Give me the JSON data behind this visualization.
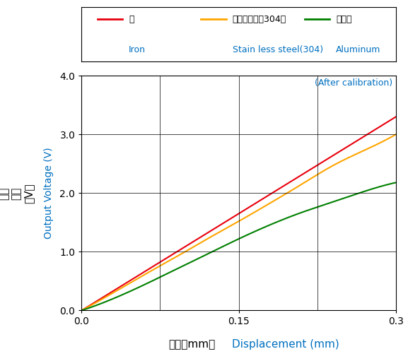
{
  "annotation_text": "(After calibration)",
  "xlabel_jp": "変位（mm）",
  "xlabel_en": "Displacement (mm)",
  "ylabel_jp": "出力\n電圧\n（V）",
  "ylabel_en": "Output Voltage (V)",
  "xlim": [
    0.0,
    0.3
  ],
  "ylim": [
    0.0,
    4.0
  ],
  "xticks": [
    0.0,
    0.15,
    0.3
  ],
  "yticks": [
    0.0,
    1.0,
    2.0,
    3.0,
    4.0
  ],
  "legend": [
    {
      "label_jp": "鉄",
      "label_en": "Iron",
      "color": "#e8000d"
    },
    {
      "label_jp": "ステンレス（304）",
      "label_en": "Stain less steel(304)",
      "color": "#ffa500"
    },
    {
      "label_jp": "アルミ",
      "label_en": "Aluminum",
      "color": "#008000"
    }
  ],
  "iron_x": [
    0.0,
    0.03,
    0.06,
    0.09,
    0.12,
    0.15,
    0.18,
    0.21,
    0.24,
    0.27,
    0.3
  ],
  "iron_y": [
    0.0,
    0.33,
    0.66,
    0.99,
    1.32,
    1.65,
    1.98,
    2.31,
    2.64,
    2.97,
    3.3
  ],
  "stainless_x": [
    0.0,
    0.03,
    0.06,
    0.09,
    0.12,
    0.15,
    0.18,
    0.21,
    0.24,
    0.27,
    0.3
  ],
  "stainless_y": [
    0.0,
    0.3,
    0.61,
    0.91,
    1.22,
    1.52,
    1.83,
    2.15,
    2.47,
    2.73,
    3.0
  ],
  "aluminum_x": [
    0.0,
    0.03,
    0.06,
    0.09,
    0.12,
    0.15,
    0.18,
    0.21,
    0.24,
    0.27,
    0.3
  ],
  "aluminum_y": [
    0.0,
    0.2,
    0.44,
    0.7,
    0.96,
    1.22,
    1.46,
    1.67,
    1.85,
    2.03,
    2.18
  ],
  "grid_color": "#000000",
  "background_color": "#ffffff",
  "border_color": "#000000",
  "text_color_jp": "#000000",
  "text_color_en": "#0070c0",
  "annotation_color": "#0070c0"
}
